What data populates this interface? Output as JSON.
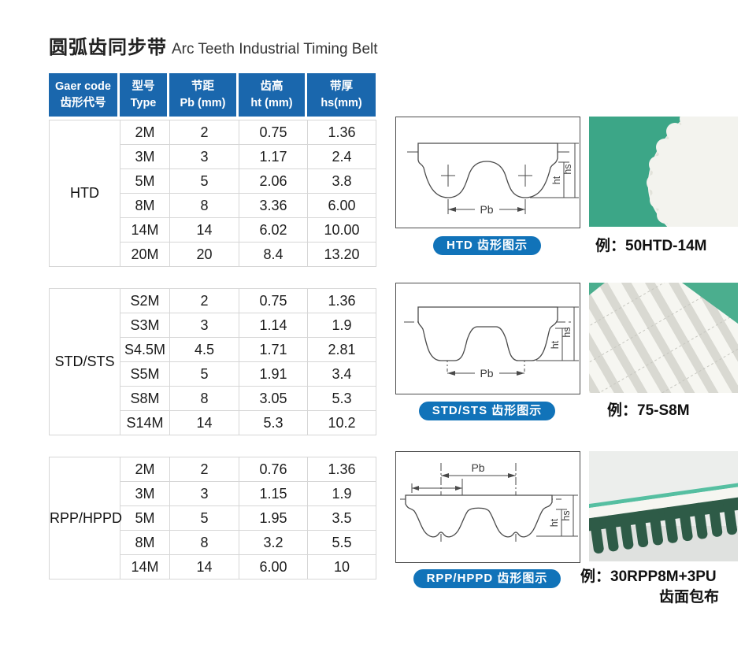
{
  "title": {
    "zh": "圆弧齿同步带",
    "en": "Arc Teeth Industrial Timing Belt"
  },
  "spec_table": {
    "headers": [
      {
        "l1": "Gaer code",
        "l2": "齿形代号"
      },
      {
        "l1": "型号",
        "l2": "Type"
      },
      {
        "l1": "节距",
        "l2": "Pb (mm)"
      },
      {
        "l1": "齿高",
        "l2": "ht (mm)"
      },
      {
        "l1": "带厚",
        "l2": "hs(mm)"
      }
    ],
    "groups": [
      {
        "code": "HTD",
        "rows": [
          [
            "2M",
            "2",
            "0.75",
            "1.36"
          ],
          [
            "3M",
            "3",
            "1.17",
            "2.4"
          ],
          [
            "5M",
            "5",
            "2.06",
            "3.8"
          ],
          [
            "8M",
            "8",
            "3.36",
            "6.00"
          ],
          [
            "14M",
            "14",
            "6.02",
            "10.00"
          ],
          [
            "20M",
            "20",
            "8.4",
            "13.20"
          ]
        ]
      },
      {
        "code": "STD/STS",
        "rows": [
          [
            "S2M",
            "2",
            "0.75",
            "1.36"
          ],
          [
            "S3M",
            "3",
            "1.14",
            "1.9"
          ],
          [
            "S4.5M",
            "4.5",
            "1.71",
            "2.81"
          ],
          [
            "S5M",
            "5",
            "1.91",
            "3.4"
          ],
          [
            "S8M",
            "8",
            "3.05",
            "5.3"
          ],
          [
            "S14M",
            "14",
            "5.3",
            "10.2"
          ]
        ]
      },
      {
        "code": "RPP/HPPD",
        "rows": [
          [
            "2M",
            "2",
            "0.76",
            "1.36"
          ],
          [
            "3M",
            "3",
            "1.15",
            "1.9"
          ],
          [
            "5M",
            "5",
            "1.95",
            "3.5"
          ],
          [
            "8M",
            "8",
            "3.2",
            "5.5"
          ],
          [
            "14M",
            "14",
            "6.00",
            "10"
          ]
        ]
      }
    ]
  },
  "diagram_labels": {
    "pb": "Pb",
    "ht": "ht",
    "hs": "hs"
  },
  "sections": [
    {
      "pill": "HTD 齿形图示",
      "example": "例：50HTD-14M",
      "example2": ""
    },
    {
      "pill": "STD/STS 齿形图示",
      "example": "例：75-S8M",
      "example2": ""
    },
    {
      "pill": "RPP/HPPD 齿形图示",
      "example": "例：30RPP8M+3PU",
      "example2": "齿面包布"
    }
  ],
  "colors": {
    "header_blue": "#1a67ad",
    "pill_blue": "#1173b9",
    "photo_green": "#3ca687",
    "belt_white": "#f3f3ee",
    "teeth_dark_green": "#2e5b47",
    "teal_stripe": "#56bfa1"
  }
}
